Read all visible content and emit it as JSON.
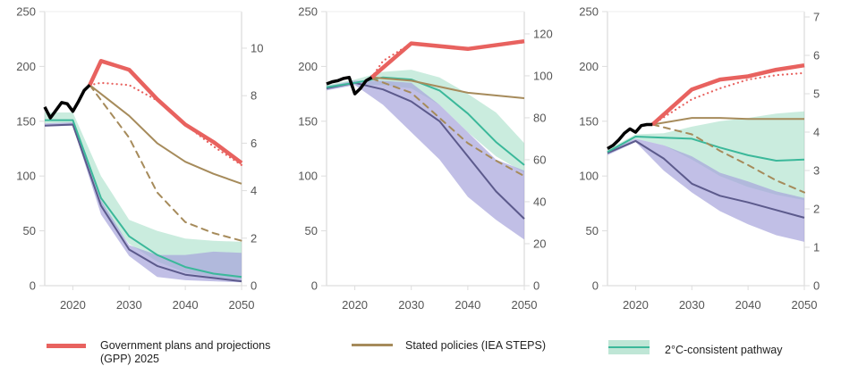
{
  "legend": {
    "gpp": "Government plans and  projections",
    "gpp_line2": "(GPP) 2025",
    "steps": "Stated policies (IEA STEPS)",
    "two_c": "2°C-consistent pathway"
  },
  "colors": {
    "gpp": "#e8625f",
    "steps": "#a68b5b",
    "historical": "#000000",
    "two_c_line": "#3bb89a",
    "two_c_band": "#9fdcc3",
    "one5_line": "#5c5a8c",
    "one5_band": "#a7a4dc",
    "axis": "#dddddd"
  },
  "chart_data": [
    {
      "type": "line",
      "panel": "coal",
      "xlim": [
        2015,
        2050
      ],
      "ylim": [
        0,
        250
      ],
      "y2lim": [
        0,
        11.54
      ],
      "xticks": [
        2020,
        2030,
        2040,
        2050
      ],
      "yticks": [
        0,
        50,
        100,
        150,
        200,
        250
      ],
      "y2ticks": [
        0,
        2,
        4,
        6,
        8,
        10
      ],
      "historical": {
        "x": [
          2015,
          2016,
          2017,
          2018,
          2019,
          2020,
          2021,
          2022,
          2023
        ],
        "y": [
          163,
          153,
          160,
          167,
          166,
          159,
          168,
          178,
          183
        ]
      },
      "gpp": {
        "x": [
          2023,
          2025,
          2030,
          2035,
          2040,
          2045,
          2050
        ],
        "y": [
          183,
          205,
          197,
          170,
          147,
          131,
          112
        ]
      },
      "gpp_dotted": {
        "x": [
          2023,
          2025,
          2030,
          2035,
          2040,
          2045,
          2050
        ],
        "y": [
          183,
          185,
          183,
          169,
          147,
          127,
          110
        ]
      },
      "steps": {
        "x": [
          2023,
          2030,
          2035,
          2040,
          2045,
          2050
        ],
        "y": [
          183,
          155,
          130,
          113,
          102,
          93
        ]
      },
      "dashed": {
        "x": [
          2023,
          2030,
          2035,
          2040,
          2045,
          2050
        ],
        "y": [
          183,
          135,
          85,
          58,
          48,
          41
        ]
      },
      "two_c": {
        "x": [
          2015,
          2020,
          2025,
          2030,
          2035,
          2040,
          2045,
          2050
        ],
        "median": [
          151,
          151,
          80,
          45,
          28,
          17,
          11,
          8
        ],
        "low": [
          148,
          148,
          72,
          38,
          22,
          12,
          8,
          5
        ],
        "high": [
          158,
          158,
          100,
          60,
          50,
          43,
          41,
          40
        ]
      },
      "one5": {
        "x": [
          2015,
          2020,
          2025,
          2030,
          2035,
          2040,
          2045,
          2050
        ],
        "median": [
          146,
          147,
          73,
          33,
          18,
          10,
          7,
          4
        ],
        "low": [
          145,
          146,
          65,
          27,
          8,
          5,
          4,
          3
        ],
        "high": [
          148,
          149,
          78,
          37,
          28,
          28,
          31,
          30
        ]
      }
    },
    {
      "type": "line",
      "panel": "oil",
      "xlim": [
        2015,
        2050
      ],
      "ylim": [
        0,
        250
      ],
      "y2lim": [
        0,
        130.6
      ],
      "xticks": [
        2020,
        2030,
        2040,
        2050
      ],
      "yticks": [
        0,
        50,
        100,
        150,
        200,
        250
      ],
      "y2ticks": [
        0,
        20,
        40,
        60,
        80,
        100,
        120
      ],
      "historical": {
        "x": [
          2015,
          2016,
          2017,
          2018,
          2019,
          2020,
          2021,
          2022,
          2023
        ],
        "y": [
          184,
          186,
          187,
          189,
          190,
          175,
          180,
          187,
          190
        ]
      },
      "gpp": {
        "x": [
          2023,
          2030,
          2040,
          2050
        ],
        "y": [
          190,
          221,
          216,
          223
        ]
      },
      "gpp_dotted": {
        "x": [
          2023,
          2025,
          2030,
          2040,
          2050
        ],
        "y": [
          190,
          205,
          221,
          216,
          222
        ]
      },
      "steps": {
        "x": [
          2023,
          2030,
          2040,
          2050
        ],
        "y": [
          190,
          187,
          176,
          171
        ]
      },
      "dashed": {
        "x": [
          2023,
          2030,
          2035,
          2040,
          2045,
          2050
        ],
        "y": [
          189,
          176,
          153,
          130,
          114,
          100
        ]
      },
      "two_c": {
        "x": [
          2015,
          2020,
          2025,
          2030,
          2035,
          2040,
          2045,
          2050
        ],
        "median": [
          181,
          185,
          190,
          188,
          178,
          157,
          131,
          110
        ],
        "low": [
          179,
          183,
          183,
          180,
          165,
          140,
          118,
          103
        ],
        "high": [
          183,
          188,
          195,
          197,
          190,
          175,
          158,
          130
        ]
      },
      "one5": {
        "x": [
          2015,
          2020,
          2025,
          2030,
          2035,
          2040,
          2045,
          2050
        ],
        "median": [
          180,
          185,
          179,
          168,
          150,
          118,
          86,
          61
        ],
        "low": [
          178,
          183,
          165,
          140,
          115,
          81,
          60,
          42
        ],
        "high": [
          182,
          187,
          187,
          185,
          165,
          140,
          115,
          105
        ]
      }
    },
    {
      "type": "line",
      "panel": "gas",
      "xlim": [
        2015,
        2050
      ],
      "ylim": [
        0,
        250
      ],
      "y2lim": [
        0,
        7.14
      ],
      "xticks": [
        2020,
        2030,
        2040,
        2050
      ],
      "yticks": [
        0,
        50,
        100,
        150,
        200,
        250
      ],
      "y2ticks": [
        0,
        1,
        2,
        3,
        4,
        5,
        6,
        7
      ],
      "historical": {
        "x": [
          2015,
          2016,
          2017,
          2018,
          2019,
          2020,
          2021,
          2022,
          2023
        ],
        "y": [
          125,
          128,
          133,
          139,
          143,
          140,
          146,
          147,
          147
        ]
      },
      "gpp": {
        "x": [
          2023,
          2030,
          2035,
          2040,
          2045,
          2050
        ],
        "y": [
          147,
          179,
          188,
          191,
          197,
          201
        ]
      },
      "gpp_dotted": {
        "x": [
          2023,
          2030,
          2035,
          2040,
          2045,
          2050
        ],
        "y": [
          147,
          170,
          180,
          188,
          192,
          194
        ]
      },
      "steps": {
        "x": [
          2023,
          2030,
          2035,
          2040,
          2045,
          2050
        ],
        "y": [
          147,
          153,
          153,
          152,
          152,
          152
        ]
      },
      "dashed": {
        "x": [
          2023,
          2030,
          2035,
          2040,
          2045,
          2050
        ],
        "y": [
          147,
          138,
          123,
          110,
          96,
          85
        ]
      },
      "two_c": {
        "x": [
          2015,
          2020,
          2025,
          2030,
          2035,
          2040,
          2045,
          2050
        ],
        "median": [
          122,
          136,
          135,
          134,
          126,
          119,
          114,
          115
        ],
        "low": [
          120,
          134,
          128,
          115,
          100,
          90,
          83,
          78
        ],
        "high": [
          124,
          138,
          139,
          145,
          150,
          153,
          157,
          159
        ]
      },
      "one5": {
        "x": [
          2015,
          2020,
          2025,
          2030,
          2035,
          2040,
          2045,
          2050
        ],
        "median": [
          121,
          132,
          116,
          93,
          82,
          76,
          69,
          62
        ],
        "low": [
          119,
          131,
          105,
          85,
          68,
          56,
          46,
          40
        ],
        "high": [
          123,
          134,
          128,
          118,
          103,
          95,
          86,
          80
        ]
      }
    }
  ]
}
